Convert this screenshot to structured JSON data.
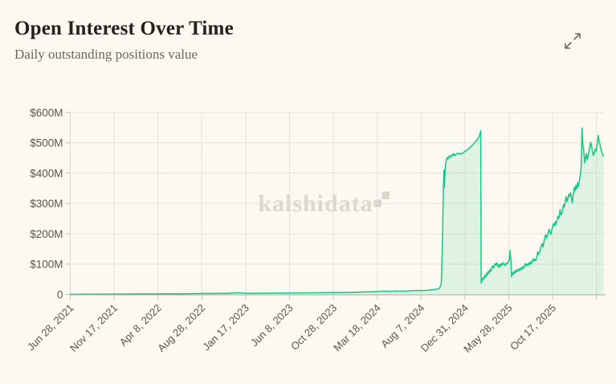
{
  "header": {
    "title": "Open Interest Over Time",
    "subtitle": "Daily outstanding positions value",
    "expand_icon": "expand-diagonal-arrows"
  },
  "watermark": {
    "text": "kalshidata",
    "icon": "kalshi-step-logo"
  },
  "colors": {
    "background": "#fbf9f2",
    "title": "#27211a",
    "subtitle": "#6c665c",
    "axis_text": "#57554f",
    "grid": "#e6e4de",
    "axis_line": "#d9d7d1",
    "baseline": "#aeaca6",
    "tick": "#c4c2bc",
    "line": "#17c880",
    "fill": "#17c880",
    "fill_opacity": 0.12,
    "watermark": "#ddd8cc",
    "expand_icon": "#6f6a62"
  },
  "chart_data": {
    "type": "area",
    "title": "Open Interest Over Time",
    "subtitle": "Daily outstanding positions value",
    "series_name": "Open interest",
    "y_unit": "USD millions",
    "ylim": [
      0,
      600
    ],
    "grid": true,
    "legend": false,
    "x_unit": "tick units (0 = tick 'Jun 28, 2021'; labeled ticks spaced ~142 days; data extends ~0.16 units past last tick)",
    "x_tick_labels": [
      "Jun 28, 2021",
      "Nov 17, 2021",
      "Apr 8, 2022",
      "Aug 28, 2022",
      "Jan 17, 2023",
      "Jun 8, 2023",
      "Oct 28, 2023",
      "Mar 18, 2024",
      "Aug 7, 2024",
      "Dec 31, 2024",
      "May 28, 2025",
      "Oct 17, 2025"
    ],
    "y_tick_labels": [
      "0",
      "$100M",
      "$200M",
      "$300M",
      "$400M",
      "$500M",
      "$600M"
    ],
    "points": [
      [
        0,
        0.4
      ],
      [
        0.2,
        0.7
      ],
      [
        0.4,
        1
      ],
      [
        0.6,
        0.8
      ],
      [
        0.9,
        1.1
      ],
      [
        1.2,
        1.3
      ],
      [
        1.5,
        1.5
      ],
      [
        1.8,
        1.7
      ],
      [
        2.1,
        2
      ],
      [
        2.4,
        2.2
      ],
      [
        2.7,
        2.5
      ],
      [
        3,
        2.8
      ],
      [
        3.3,
        3.1
      ],
      [
        3.6,
        3.6
      ],
      [
        3.8,
        5.5
      ],
      [
        3.95,
        4.2
      ],
      [
        4.1,
        3.6
      ],
      [
        4.4,
        3.9
      ],
      [
        4.7,
        4.2
      ],
      [
        5,
        4.6
      ],
      [
        5.3,
        5
      ],
      [
        5.6,
        5.4
      ],
      [
        5.9,
        5.9
      ],
      [
        6.2,
        6.4
      ],
      [
        6.5,
        7.2
      ],
      [
        6.75,
        8.2
      ],
      [
        7,
        9.5
      ],
      [
        7.15,
        10.8
      ],
      [
        7.3,
        9.8
      ],
      [
        7.45,
        11.2
      ],
      [
        7.6,
        10.2
      ],
      [
        7.75,
        12
      ],
      [
        7.9,
        13.2
      ],
      [
        8.05,
        12.4
      ],
      [
        8.2,
        14.5
      ],
      [
        8.32,
        16.5
      ],
      [
        8.42,
        20
      ],
      [
        8.46,
        35
      ],
      [
        8.475,
        100
      ],
      [
        8.49,
        200
      ],
      [
        8.5,
        280
      ],
      [
        8.51,
        345
      ],
      [
        8.52,
        410
      ],
      [
        8.532,
        352
      ],
      [
        8.545,
        400
      ],
      [
        8.555,
        425
      ],
      [
        8.57,
        438
      ],
      [
        8.585,
        448
      ],
      [
        8.6,
        452
      ],
      [
        8.615,
        446
      ],
      [
        8.63,
        452
      ],
      [
        8.65,
        458
      ],
      [
        8.67,
        452
      ],
      [
        8.69,
        456
      ],
      [
        8.71,
        462
      ],
      [
        8.73,
        458
      ],
      [
        8.75,
        464
      ],
      [
        8.77,
        458
      ],
      [
        8.8,
        462
      ],
      [
        8.83,
        466
      ],
      [
        8.86,
        462
      ],
      [
        8.89,
        466
      ],
      [
        8.92,
        462
      ],
      [
        8.95,
        466
      ],
      [
        8.98,
        470
      ],
      [
        9.02,
        474
      ],
      [
        9.06,
        478
      ],
      [
        9.1,
        482
      ],
      [
        9.14,
        488
      ],
      [
        9.18,
        494
      ],
      [
        9.22,
        500
      ],
      [
        9.26,
        507
      ],
      [
        9.3,
        514
      ],
      [
        9.33,
        522
      ],
      [
        9.36,
        540
      ],
      [
        9.37,
        38
      ],
      [
        9.39,
        46
      ],
      [
        9.41,
        55
      ],
      [
        9.43,
        50
      ],
      [
        9.45,
        63
      ],
      [
        9.47,
        57
      ],
      [
        9.49,
        70
      ],
      [
        9.51,
        64
      ],
      [
        9.53,
        76
      ],
      [
        9.55,
        70
      ],
      [
        9.57,
        82
      ],
      [
        9.59,
        76
      ],
      [
        9.61,
        88
      ],
      [
        9.63,
        94
      ],
      [
        9.65,
        87
      ],
      [
        9.67,
        96
      ],
      [
        9.69,
        102
      ],
      [
        9.71,
        95
      ],
      [
        9.73,
        104
      ],
      [
        9.75,
        97
      ],
      [
        9.77,
        89
      ],
      [
        9.79,
        99
      ],
      [
        9.81,
        93
      ],
      [
        9.83,
        102
      ],
      [
        9.85,
        96
      ],
      [
        9.87,
        105
      ],
      [
        9.89,
        99
      ],
      [
        9.91,
        95
      ],
      [
        9.93,
        103
      ],
      [
        9.95,
        99
      ],
      [
        9.97,
        104
      ],
      [
        9.99,
        108
      ],
      [
        10.01,
        112
      ],
      [
        10.03,
        145
      ],
      [
        10.05,
        110
      ],
      [
        10.065,
        58
      ],
      [
        10.08,
        72
      ],
      [
        10.1,
        66
      ],
      [
        10.12,
        76
      ],
      [
        10.14,
        70
      ],
      [
        10.16,
        80
      ],
      [
        10.18,
        74
      ],
      [
        10.2,
        82
      ],
      [
        10.22,
        77
      ],
      [
        10.24,
        85
      ],
      [
        10.26,
        80
      ],
      [
        10.28,
        88
      ],
      [
        10.3,
        83
      ],
      [
        10.32,
        92
      ],
      [
        10.34,
        86
      ],
      [
        10.36,
        96
      ],
      [
        10.38,
        102
      ],
      [
        10.4,
        94
      ],
      [
        10.42,
        100
      ],
      [
        10.44,
        95
      ],
      [
        10.46,
        104
      ],
      [
        10.48,
        98
      ],
      [
        10.5,
        108
      ],
      [
        10.52,
        102
      ],
      [
        10.54,
        112
      ],
      [
        10.56,
        118
      ],
      [
        10.58,
        110
      ],
      [
        10.6,
        116
      ],
      [
        10.62,
        112
      ],
      [
        10.64,
        124
      ],
      [
        10.66,
        140
      ],
      [
        10.68,
        132
      ],
      [
        10.7,
        138
      ],
      [
        10.72,
        150
      ],
      [
        10.74,
        160
      ],
      [
        10.76,
        168
      ],
      [
        10.78,
        156
      ],
      [
        10.8,
        172
      ],
      [
        10.82,
        188
      ],
      [
        10.84,
        197
      ],
      [
        10.86,
        186
      ],
      [
        10.88,
        192
      ],
      [
        10.9,
        205
      ],
      [
        10.92,
        215
      ],
      [
        10.94,
        206
      ],
      [
        10.96,
        198
      ],
      [
        10.98,
        212
      ],
      [
        11,
        224
      ],
      [
        11.02,
        233
      ],
      [
        11.04,
        226
      ],
      [
        11.06,
        240
      ],
      [
        11.08,
        230
      ],
      [
        11.1,
        246
      ],
      [
        11.12,
        258
      ],
      [
        11.14,
        250
      ],
      [
        11.16,
        266
      ],
      [
        11.17,
        280
      ],
      [
        11.19,
        262
      ],
      [
        11.21,
        268
      ],
      [
        11.23,
        284
      ],
      [
        11.25,
        296
      ],
      [
        11.27,
        288
      ],
      [
        11.29,
        310
      ],
      [
        11.31,
        322
      ],
      [
        11.33,
        306
      ],
      [
        11.35,
        318
      ],
      [
        11.37,
        330
      ],
      [
        11.39,
        322
      ],
      [
        11.41,
        336
      ],
      [
        11.43,
        318
      ],
      [
        11.45,
        302
      ],
      [
        11.47,
        330
      ],
      [
        11.49,
        352
      ],
      [
        11.51,
        342
      ],
      [
        11.53,
        360
      ],
      [
        11.55,
        348
      ],
      [
        11.57,
        368
      ],
      [
        11.59,
        356
      ],
      [
        11.61,
        376
      ],
      [
        11.63,
        392
      ],
      [
        11.65,
        420
      ],
      [
        11.67,
        549
      ],
      [
        11.69,
        492
      ],
      [
        11.71,
        474
      ],
      [
        11.73,
        434
      ],
      [
        11.75,
        450
      ],
      [
        11.77,
        464
      ],
      [
        11.79,
        444
      ],
      [
        11.81,
        458
      ],
      [
        11.83,
        472
      ],
      [
        11.85,
        490
      ],
      [
        11.87,
        502
      ],
      [
        11.89,
        486
      ],
      [
        11.91,
        470
      ],
      [
        11.93,
        458
      ],
      [
        11.95,
        468
      ],
      [
        11.97,
        480
      ],
      [
        11.99,
        472
      ],
      [
        12.01,
        490
      ],
      [
        12.04,
        524
      ],
      [
        12.06,
        504
      ],
      [
        12.08,
        494
      ],
      [
        12.1,
        480
      ],
      [
        12.12,
        470
      ],
      [
        12.14,
        462
      ],
      [
        12.16,
        455
      ]
    ]
  }
}
